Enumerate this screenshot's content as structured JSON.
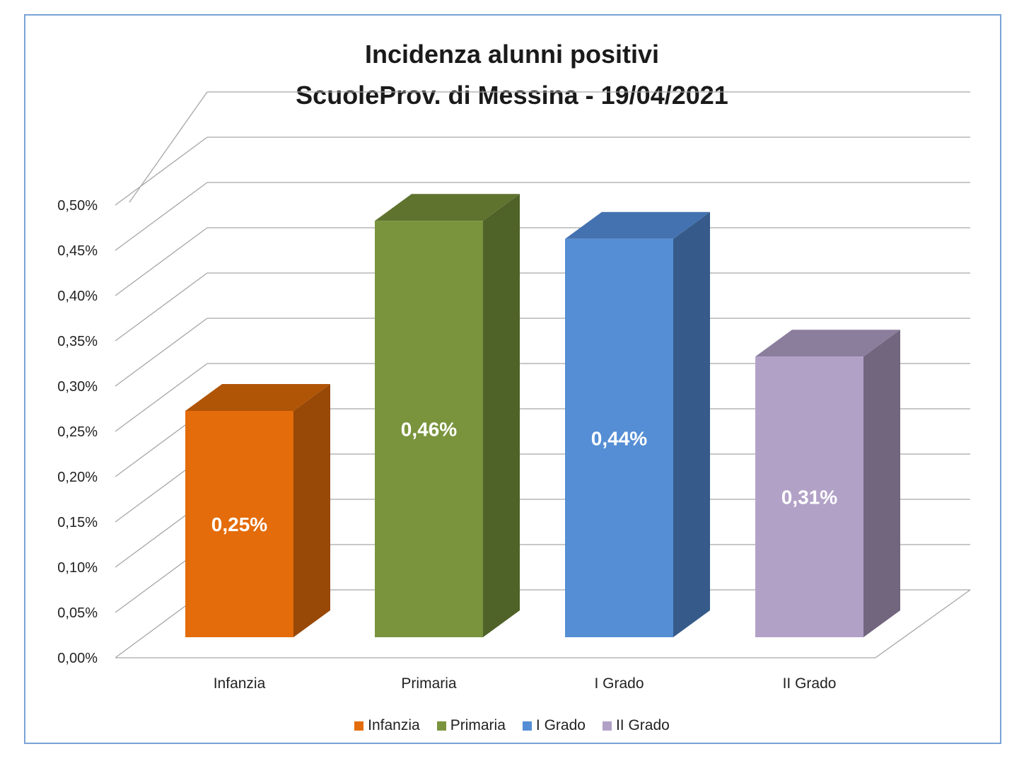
{
  "chart_data": {
    "type": "bar",
    "title": "Incidenza alunni positivi",
    "subtitle": "ScuoleProv. di Messina - 19/04/2021",
    "categories": [
      "Infanzia",
      "Primaria",
      "I Grado",
      "II Grado"
    ],
    "values": [
      0.25,
      0.46,
      0.44,
      0.31
    ],
    "value_labels": [
      "0,25%",
      "0,46%",
      "0,44%",
      "0,31%"
    ],
    "y_ticks": [
      "0,00%",
      "0,05%",
      "0,10%",
      "0,15%",
      "0,20%",
      "0,25%",
      "0,30%",
      "0,35%",
      "0,40%",
      "0,45%",
      "0,50%"
    ],
    "ylim": [
      0,
      0.5
    ],
    "grid": true,
    "style": "3d-column",
    "legend_position": "bottom",
    "legend": [
      "Infanzia",
      "Primaria",
      "I Grado",
      "II Grado"
    ],
    "colors": {
      "front": [
        "#e46c0a",
        "#7a943d",
        "#558ed5",
        "#b2a1c7"
      ],
      "side": [
        "#984807",
        "#4f6228",
        "#365b8a",
        "#72667f"
      ],
      "top": [
        "#b05506",
        "#5f732f",
        "#4472b0",
        "#8b7d9c"
      ]
    }
  }
}
